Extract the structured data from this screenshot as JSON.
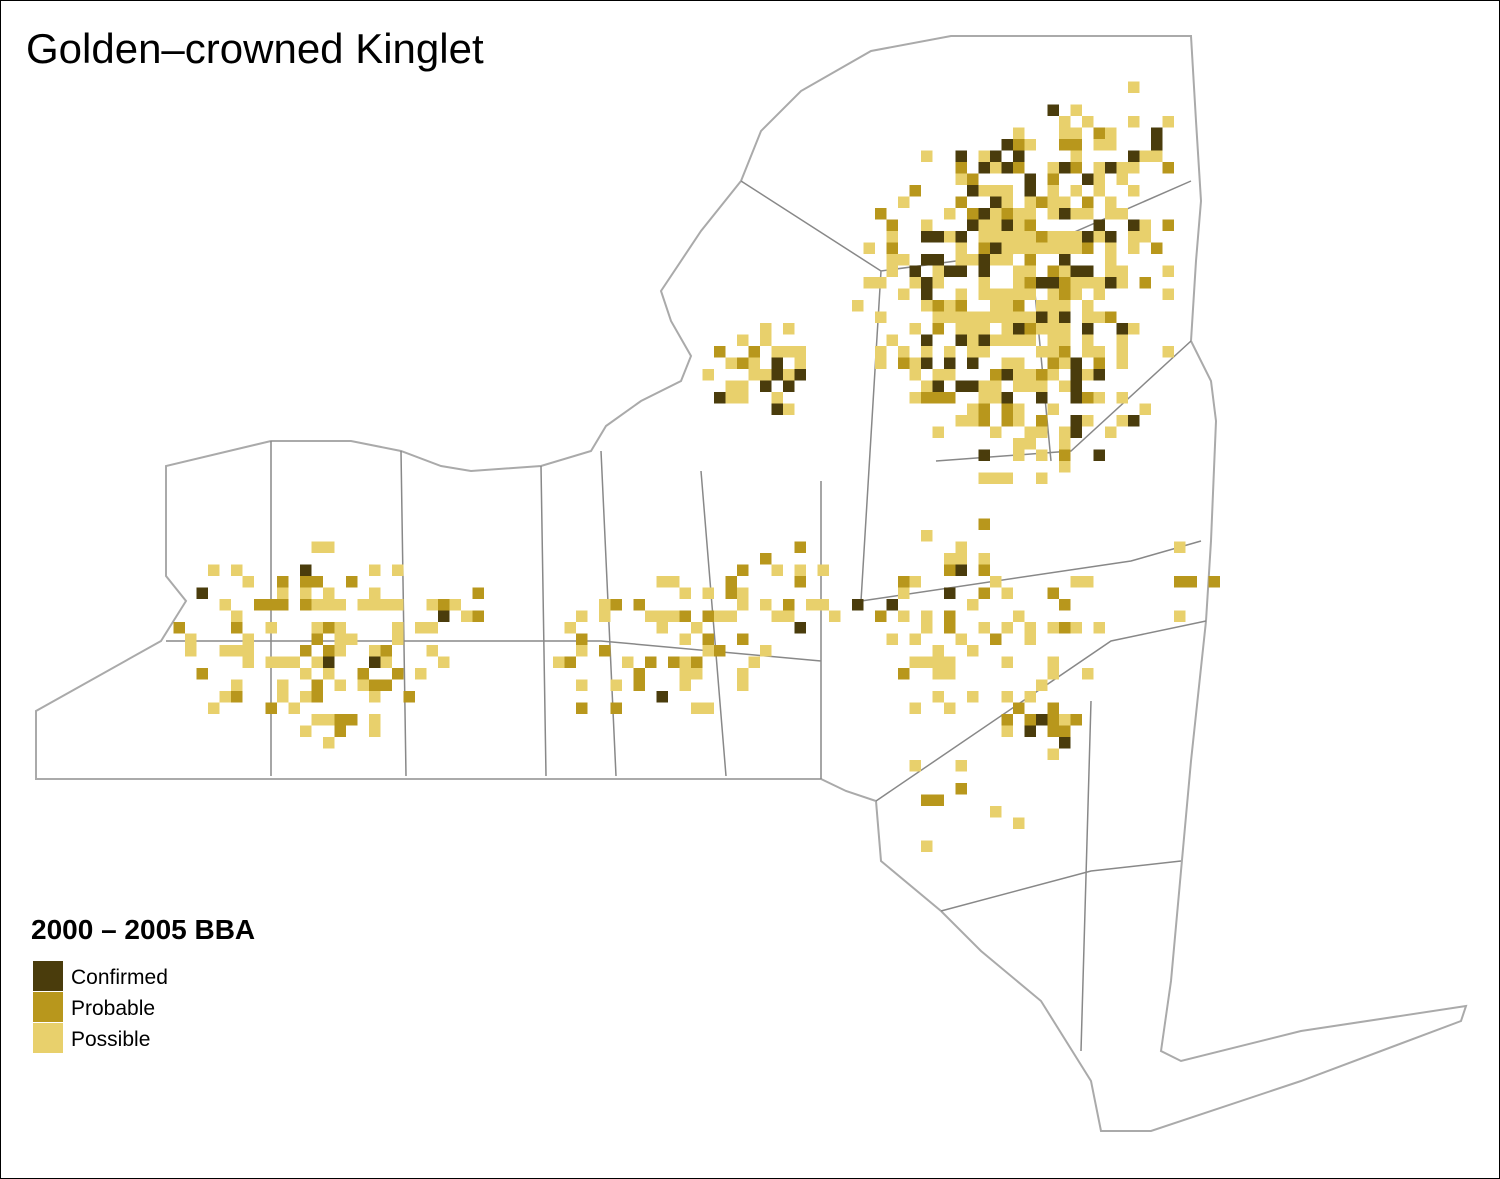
{
  "title": "Golden–crowned Kinglet",
  "legend": {
    "title": "2000 – 2005 BBA",
    "items": [
      {
        "name": "Confirmed",
        "color": "#4a3c0c"
      },
      {
        "name": "Probable",
        "color": "#b8971c"
      },
      {
        "name": "Possible",
        "color": "#e8d06c"
      }
    ]
  }
}
